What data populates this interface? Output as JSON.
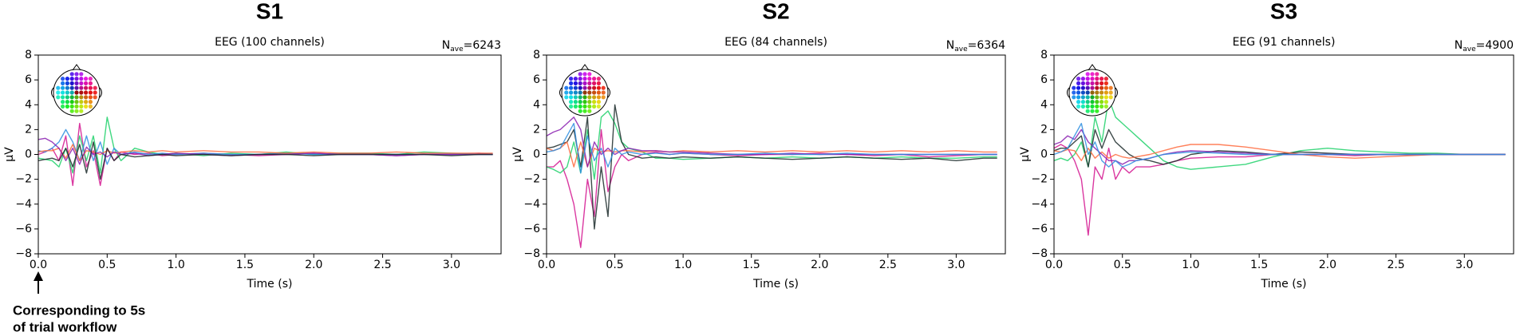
{
  "chart_data": [
    {
      "type": "line",
      "heading": "S1",
      "title": "EEG (100 channels)",
      "nave": {
        "symbol": "N",
        "subscript": "ave",
        "text": "=6243"
      },
      "xlabel": "Time (s)",
      "ylabel": "µV",
      "xlim": [
        0,
        3.36
      ],
      "ylim": [
        -8,
        8
      ],
      "xticks": [
        {
          "value": 0,
          "label": "0.0"
        },
        {
          "value": 0.5,
          "label": "0.5"
        },
        {
          "value": 1,
          "label": "1.0"
        },
        {
          "value": 1.5,
          "label": "1.5"
        },
        {
          "value": 2,
          "label": "2.0"
        },
        {
          "value": 2.5,
          "label": "2.5"
        },
        {
          "value": 3,
          "label": "3.0"
        }
      ],
      "yticks": [
        {
          "value": -8,
          "label": "−8"
        },
        {
          "value": -6,
          "label": "−6"
        },
        {
          "value": -4,
          "label": "−4"
        },
        {
          "value": -2,
          "label": "−2"
        },
        0,
        2,
        4,
        6,
        8
      ],
      "x": [
        0,
        0.05,
        0.1,
        0.15,
        0.2,
        0.25,
        0.3,
        0.35,
        0.4,
        0.45,
        0.5,
        0.55,
        0.6,
        0.7,
        0.8,
        0.9,
        1.0,
        1.2,
        1.4,
        1.6,
        1.8,
        2.0,
        2.2,
        2.4,
        2.6,
        2.8,
        3.0,
        3.2,
        3.3
      ],
      "series": [
        {
          "color": "#d4148f",
          "values": [
            0,
            0.2,
            0.5,
            -0.5,
            1.5,
            -2.5,
            2.5,
            -1,
            0.3,
            -2.5,
            0.5,
            -0.5,
            0.2,
            0,
            0.1,
            -0.1,
            0,
            0.1,
            0,
            -0.1,
            0,
            0.1,
            0,
            0,
            -0.1,
            0,
            0,
            0.1,
            0
          ]
        },
        {
          "color": "#1fd16a",
          "values": [
            -0.3,
            -0.4,
            -0.5,
            -1,
            0.5,
            -1.5,
            1.5,
            -0.5,
            1.5,
            -1.5,
            3,
            0.5,
            -0.5,
            0.5,
            0.2,
            0,
            0.1,
            -0.1,
            0.1,
            0,
            0.2,
            0,
            0.1,
            0.1,
            0,
            0.2,
            0.1,
            0,
            0
          ]
        },
        {
          "color": "#2f8fe0",
          "values": [
            0.3,
            0.2,
            0.5,
            1,
            2,
            1,
            -0.5,
            1.5,
            -0.5,
            1,
            -0.8,
            0.5,
            0,
            0.2,
            0,
            0.1,
            0,
            0.1,
            0,
            0,
            0.1,
            0,
            0,
            0,
            0,
            0,
            0,
            0,
            0
          ]
        },
        {
          "color": "#ff6a3d",
          "values": [
            0.2,
            0.3,
            0.3,
            0.5,
            -0.3,
            0.8,
            -0.5,
            0.3,
            0.2,
            0,
            0.3,
            0.1,
            0.2,
            0.3,
            0.2,
            0.3,
            0.2,
            0.3,
            0.2,
            0.2,
            0.1,
            0.2,
            0.1,
            0.1,
            0.2,
            0.1,
            0.1,
            0.1,
            0.1
          ]
        },
        {
          "color": "#8a1fb0",
          "values": [
            1.2,
            1.3,
            1,
            0.5,
            -0.5,
            0.5,
            -0.8,
            0.6,
            0,
            0.2,
            -0.2,
            0.2,
            0,
            0.1,
            -0.1,
            0,
            0.1,
            0,
            -0.1,
            0,
            0,
            0.1,
            0,
            0,
            -0.1,
            0,
            0,
            0,
            0
          ]
        },
        {
          "color": "#1b2a2a",
          "values": [
            -0.5,
            -0.4,
            -0.3,
            -0.5,
            0.5,
            -1,
            0.8,
            -1.5,
            1,
            -2,
            0.5,
            -0.5,
            0,
            -0.2,
            -0.1,
            0,
            -0.1,
            0,
            -0.1,
            0,
            0,
            -0.1,
            0,
            0,
            0,
            0,
            -0.1,
            0,
            0
          ]
        }
      ]
    },
    {
      "type": "line",
      "heading": "S2",
      "title": "EEG (84 channels)",
      "nave": {
        "symbol": "N",
        "subscript": "ave",
        "text": "=6364"
      },
      "xlabel": "Time (s)",
      "ylabel": "µV",
      "xlim": [
        0,
        3.36
      ],
      "ylim": [
        -8,
        8
      ],
      "xticks": [
        {
          "value": 0,
          "label": "0.0"
        },
        {
          "value": 0.5,
          "label": "0.5"
        },
        {
          "value": 1,
          "label": "1.0"
        },
        {
          "value": 1.5,
          "label": "1.5"
        },
        {
          "value": 2,
          "label": "2.0"
        },
        {
          "value": 2.5,
          "label": "2.5"
        },
        {
          "value": 3,
          "label": "3.0"
        }
      ],
      "yticks": [
        {
          "value": -8,
          "label": "−8"
        },
        {
          "value": -6,
          "label": "−6"
        },
        {
          "value": -4,
          "label": "−4"
        },
        {
          "value": -2,
          "label": "−2"
        },
        0,
        2,
        4,
        6,
        8
      ],
      "x": [
        0,
        0.05,
        0.1,
        0.15,
        0.2,
        0.25,
        0.3,
        0.35,
        0.4,
        0.45,
        0.5,
        0.55,
        0.6,
        0.7,
        0.8,
        0.9,
        1.0,
        1.2,
        1.4,
        1.6,
        1.8,
        2.0,
        2.2,
        2.4,
        2.6,
        2.8,
        3.0,
        3.2,
        3.3
      ],
      "series": [
        {
          "color": "#d4148f",
          "values": [
            -1,
            -1,
            -0.5,
            -2,
            -4,
            -7.5,
            -2,
            -5,
            2,
            -3,
            -1,
            0,
            -0.5,
            0,
            0.2,
            0,
            0.1,
            0,
            -0.1,
            0,
            0,
            0.1,
            0,
            -0.1,
            0,
            -0.2,
            -0.1,
            0,
            0
          ]
        },
        {
          "color": "#1fd16a",
          "values": [
            -1,
            -1.2,
            -1.5,
            -1,
            1,
            -1.5,
            2,
            -2,
            3,
            3.5,
            2.5,
            1,
            0.5,
            0.2,
            -0.3,
            -0.3,
            -0.4,
            -0.3,
            -0.2,
            -0.3,
            -0.2,
            -0.3,
            -0.2,
            -0.3,
            -0.2,
            -0.3,
            -0.3,
            -0.2,
            -0.2
          ]
        },
        {
          "color": "#1b2a2a",
          "values": [
            0.5,
            0.6,
            0.8,
            1,
            2,
            -1,
            3,
            -6,
            -1,
            -5,
            4,
            1,
            0,
            -0.3,
            -0.2,
            -0.3,
            -0.2,
            -0.3,
            -0.2,
            -0.3,
            -0.4,
            -0.3,
            -0.2,
            -0.3,
            -0.4,
            -0.3,
            -0.5,
            -0.3,
            -0.3
          ]
        },
        {
          "color": "#ff6a3d",
          "values": [
            0.5,
            0.3,
            0.5,
            1,
            -1,
            1,
            -1,
            0.5,
            0.2,
            0.3,
            0.2,
            0.3,
            0.3,
            0.2,
            0.3,
            0.2,
            0.3,
            0.2,
            0.3,
            0.2,
            0.3,
            0.2,
            0.3,
            0.2,
            0.3,
            0.2,
            0.3,
            0.2,
            0.2
          ]
        },
        {
          "color": "#8a1fb0",
          "values": [
            1.5,
            1.8,
            2,
            2.5,
            3,
            2,
            -1,
            1,
            0,
            0.5,
            0,
            0.3,
            0.5,
            0.3,
            0.3,
            0.2,
            0.2,
            0.1,
            0,
            0,
            0.1,
            0,
            0,
            0,
            0,
            0,
            0,
            0,
            0
          ]
        },
        {
          "color": "#2f8fe0",
          "values": [
            0.2,
            0.3,
            0.5,
            1.5,
            2.5,
            -1.5,
            1.5,
            -0.5,
            0.5,
            -1,
            0.5,
            0,
            0.2,
            0,
            0.1,
            0,
            0.1,
            0,
            0,
            0.1,
            0,
            0,
            0.1,
            0,
            0,
            0,
            0,
            0,
            0
          ]
        }
      ]
    },
    {
      "type": "line",
      "heading": "S3",
      "title": "EEG (91 channels)",
      "nave": {
        "symbol": "N",
        "subscript": "ave",
        "text": "=4900"
      },
      "xlabel": "Time (s)",
      "ylabel": "µV",
      "xlim": [
        0,
        3.36
      ],
      "ylim": [
        -8,
        8
      ],
      "xticks": [
        {
          "value": 0,
          "label": "0.0"
        },
        {
          "value": 0.5,
          "label": "0.5"
        },
        {
          "value": 1,
          "label": "1.0"
        },
        {
          "value": 1.5,
          "label": "1.5"
        },
        {
          "value": 2,
          "label": "2.0"
        },
        {
          "value": 2.5,
          "label": "2.5"
        },
        {
          "value": 3,
          "label": "3.0"
        }
      ],
      "yticks": [
        {
          "value": -8,
          "label": "−8"
        },
        {
          "value": -6,
          "label": "−6"
        },
        {
          "value": -4,
          "label": "−4"
        },
        {
          "value": -2,
          "label": "−2"
        },
        0,
        2,
        4,
        6,
        8
      ],
      "x": [
        0,
        0.05,
        0.1,
        0.15,
        0.2,
        0.25,
        0.3,
        0.35,
        0.4,
        0.45,
        0.5,
        0.55,
        0.6,
        0.7,
        0.8,
        0.9,
        1.0,
        1.2,
        1.4,
        1.6,
        1.8,
        2.0,
        2.2,
        2.4,
        2.6,
        2.8,
        3.0,
        3.2,
        3.3
      ],
      "series": [
        {
          "color": "#d4148f",
          "values": [
            0.5,
            0.8,
            0.5,
            -0.5,
            -2,
            -6.5,
            -1,
            -2,
            0.5,
            -2,
            -1,
            -1.5,
            -1,
            -1,
            -0.8,
            -0.5,
            -0.3,
            -0.2,
            -0.2,
            0,
            0,
            0,
            -0.1,
            0,
            0,
            0,
            0,
            0,
            0
          ]
        },
        {
          "color": "#1fd16a",
          "values": [
            -0.5,
            -0.3,
            -0.5,
            0,
            1,
            -1,
            3,
            1,
            4.5,
            3,
            2.5,
            2,
            1.5,
            0.5,
            -0.5,
            -1,
            -1.2,
            -1,
            -0.8,
            -0.2,
            0.3,
            0.5,
            0.3,
            0.2,
            0.1,
            0.1,
            0,
            0,
            0
          ]
        },
        {
          "color": "#1b2a2a",
          "values": [
            0.3,
            0.5,
            0.5,
            1,
            1.5,
            -1,
            2,
            0.5,
            2,
            1,
            0.5,
            0,
            -0.3,
            -0.5,
            -0.8,
            -0.5,
            0,
            0.3,
            0.2,
            0,
            0.2,
            0.1,
            0,
            0,
            0,
            0,
            0,
            0,
            0
          ]
        },
        {
          "color": "#ff6a3d",
          "values": [
            0.3,
            0.2,
            0.4,
            0.3,
            -0.5,
            0.5,
            -0.3,
            0.2,
            -0.3,
            0,
            -0.2,
            -0.3,
            -0.2,
            0,
            0.3,
            0.6,
            0.8,
            0.8,
            0.6,
            0.3,
            0,
            -0.2,
            -0.3,
            -0.2,
            -0.1,
            0,
            0,
            0,
            0
          ]
        },
        {
          "color": "#8a1fb0",
          "values": [
            0.8,
            1,
            1.5,
            1.2,
            2,
            1,
            0.5,
            0,
            -0.5,
            -0.5,
            -0.8,
            -0.5,
            -0.5,
            -0.3,
            0,
            0.2,
            0.3,
            0.2,
            0.1,
            0,
            0,
            0,
            0,
            0,
            0,
            0,
            0,
            0,
            0
          ]
        },
        {
          "color": "#2f8fe0",
          "values": [
            0,
            0.2,
            0.5,
            1.5,
            2.5,
            0,
            1,
            -0.5,
            -1,
            -0.5,
            -1,
            -0.8,
            -0.5,
            -0.3,
            0,
            0.1,
            0.2,
            0.1,
            0,
            0,
            0,
            0,
            0,
            0,
            0,
            0,
            0,
            0,
            0
          ]
        }
      ]
    }
  ],
  "annotation": {
    "lines": [
      "Corresponding to 5s",
      "of trial workflow"
    ]
  }
}
